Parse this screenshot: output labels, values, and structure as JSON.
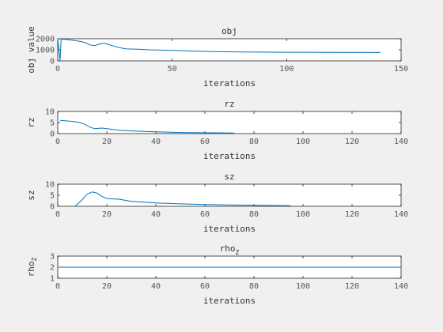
{
  "line_color": "#0072BD",
  "chart_data": [
    {
      "type": "line",
      "title": "obj",
      "xlabel": "iterations",
      "ylabel": "obj value",
      "xlim": [
        0,
        150
      ],
      "ylim": [
        0,
        2000
      ],
      "xticks": [
        "0",
        "50",
        "100",
        "150"
      ],
      "yticks": [
        "0",
        "1000",
        "2000"
      ],
      "x": [
        0,
        1,
        1.5,
        2,
        3,
        5,
        8,
        10,
        12,
        14,
        16,
        18,
        20,
        22,
        25,
        28,
        30,
        35,
        40,
        50,
        60,
        70,
        80,
        100,
        120,
        141
      ],
      "y": [
        2000,
        0,
        2000,
        1950,
        1950,
        1900,
        1820,
        1750,
        1650,
        1450,
        1380,
        1500,
        1600,
        1500,
        1300,
        1150,
        1080,
        1050,
        1000,
        950,
        880,
        830,
        800,
        780,
        770,
        760
      ]
    },
    {
      "type": "line",
      "title": "rz",
      "xlabel": "iterations",
      "ylabel": "rz",
      "xlim": [
        0,
        140
      ],
      "ylim": [
        0,
        10
      ],
      "xticks": [
        "0",
        "20",
        "40",
        "60",
        "80",
        "100",
        "120",
        "140"
      ],
      "yticks": [
        "0",
        "5",
        "10"
      ],
      "x": [
        1,
        3,
        6,
        9,
        11,
        13,
        15,
        18,
        20,
        25,
        30,
        40,
        50,
        60,
        72
      ],
      "y": [
        6,
        5.8,
        5.5,
        5,
        4.2,
        3,
        2.2,
        2.5,
        2.2,
        1.5,
        1.2,
        0.8,
        0.5,
        0.4,
        0.3
      ]
    },
    {
      "type": "line",
      "title": "sz",
      "xlabel": "iterations",
      "ylabel": "sz",
      "xlim": [
        0,
        140
      ],
      "ylim": [
        0,
        10
      ],
      "xticks": [
        "0",
        "20",
        "40",
        "60",
        "80",
        "100",
        "120",
        "140"
      ],
      "yticks": [
        "0",
        "5",
        "10"
      ],
      "x": [
        7,
        10,
        12,
        14,
        16,
        18,
        20,
        25,
        30,
        40,
        50,
        60,
        70,
        80,
        95
      ],
      "y": [
        0,
        3,
        5.5,
        6.5,
        6,
        4.5,
        3.5,
        3.2,
        2.2,
        1.5,
        1.1,
        0.8,
        0.6,
        0.5,
        0.3
      ]
    },
    {
      "type": "line",
      "title": "rho",
      "title_sub": "Z",
      "xlabel": "iterations",
      "ylabel": "rho",
      "ylabel_sub": "Z",
      "xlim": [
        0,
        140
      ],
      "ylim": [
        1,
        3
      ],
      "xticks": [
        "0",
        "20",
        "40",
        "60",
        "80",
        "100",
        "120",
        "140"
      ],
      "yticks": [
        "1",
        "2",
        "3"
      ],
      "x": [
        0,
        140
      ],
      "y": [
        2,
        2
      ]
    }
  ]
}
